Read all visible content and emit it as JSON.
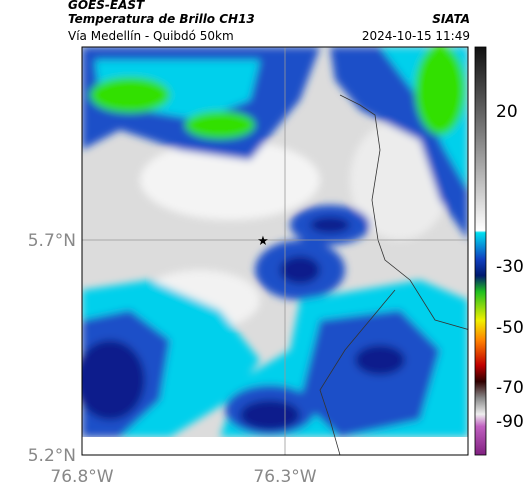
{
  "header": {
    "source": "GOES-EAST",
    "title": "Temperatura de Brillo CH13",
    "agency": "SIATA",
    "subtitle": "Vía Medellín - Quibdó 50km",
    "timestamp": "2024-10-15 11:49"
  },
  "map": {
    "lat_labels": [
      "5.7°N",
      "5.2°N"
    ],
    "lon_labels": [
      "76.8°W",
      "76.3°W"
    ]
  },
  "colorbar": {
    "ticks": [
      20,
      -30,
      -50,
      -70,
      -90
    ]
  }
}
